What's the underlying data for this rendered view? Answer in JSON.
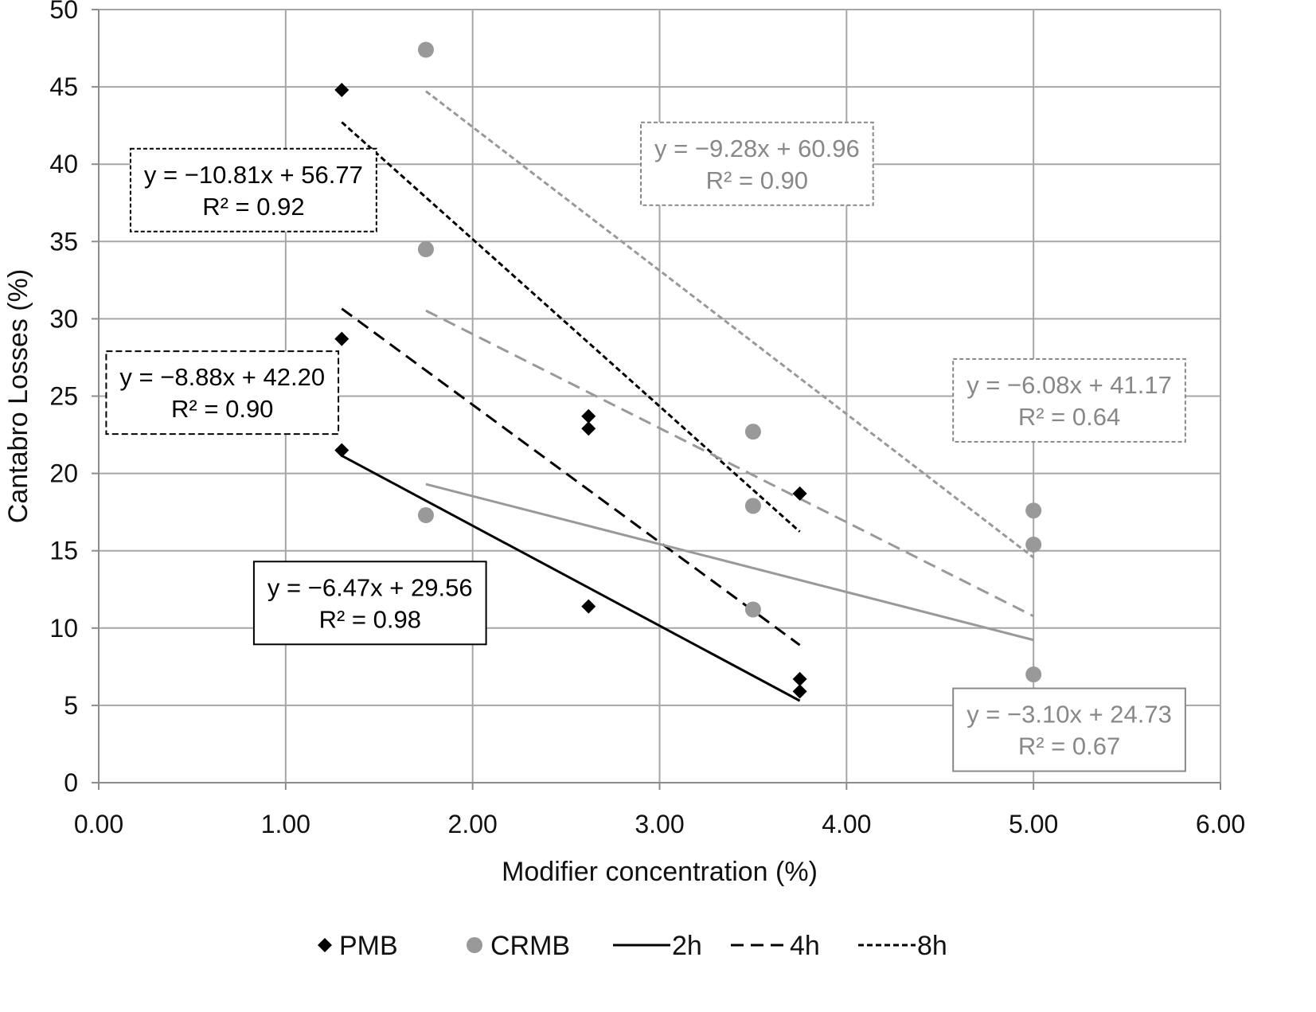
{
  "chart_data": {
    "type": "scatter",
    "xlabel": "Modifier concentration (%)",
    "ylabel": "Cantabro Losses (%)",
    "xlim": [
      0,
      6
    ],
    "ylim": [
      0,
      50
    ],
    "x_ticks": [
      "0.00",
      "1.00",
      "2.00",
      "3.00",
      "4.00",
      "5.00",
      "6.00"
    ],
    "y_ticks": [
      "0",
      "5",
      "10",
      "15",
      "20",
      "25",
      "30",
      "35",
      "40",
      "45",
      "50"
    ],
    "grid": true,
    "legend_position": "bottom",
    "series": [
      {
        "name": "PMB",
        "marker": "diamond",
        "color": "#000000",
        "points": [
          [
            1.3,
            44.8
          ],
          [
            1.3,
            28.7
          ],
          [
            1.3,
            21.5
          ],
          [
            2.62,
            23.7
          ],
          [
            2.62,
            22.9
          ],
          [
            2.62,
            11.4
          ],
          [
            3.75,
            18.7
          ],
          [
            3.75,
            6.7
          ],
          [
            3.75,
            5.9
          ]
        ]
      },
      {
        "name": "CRMB",
        "marker": "circle",
        "color": "#999999",
        "points": [
          [
            1.75,
            47.4
          ],
          [
            1.75,
            34.5
          ],
          [
            1.75,
            17.3
          ],
          [
            3.5,
            22.7
          ],
          [
            3.5,
            17.9
          ],
          [
            3.5,
            11.2
          ],
          [
            5.0,
            17.6
          ],
          [
            5.0,
            15.4
          ],
          [
            5.0,
            7.0
          ]
        ]
      }
    ],
    "trendlines": [
      {
        "group": "PMB",
        "duration": "2h",
        "x": [
          1.3,
          3.75
        ],
        "slope": -6.47,
        "intercept": 29.56,
        "color": "#000000",
        "style": "solid"
      },
      {
        "group": "PMB",
        "duration": "4h",
        "x": [
          1.3,
          3.75
        ],
        "slope": -8.88,
        "intercept": 42.2,
        "color": "#000000",
        "style": "dashed"
      },
      {
        "group": "PMB",
        "duration": "8h",
        "x": [
          1.3,
          3.75
        ],
        "slope": -10.81,
        "intercept": 56.77,
        "color": "#000000",
        "style": "dotted"
      },
      {
        "group": "CRMB",
        "duration": "2h",
        "x": [
          1.75,
          5.0
        ],
        "slope": -3.1,
        "intercept": 24.73,
        "color": "#999999",
        "style": "solid"
      },
      {
        "group": "CRMB",
        "duration": "4h",
        "x": [
          1.75,
          5.0
        ],
        "slope": -6.08,
        "intercept": 41.17,
        "color": "#999999",
        "style": "dashed"
      },
      {
        "group": "CRMB",
        "duration": "8h",
        "x": [
          1.75,
          5.0
        ],
        "slope": -9.28,
        "intercept": 60.96,
        "color": "#999999",
        "style": "dotted"
      }
    ],
    "annotations": [
      {
        "equation": "y = −10.81x + 56.77",
        "r2": "R² = 0.92",
        "color": "#000000",
        "border": "dotted",
        "anchor": [
          0.17,
          41.0
        ]
      },
      {
        "equation": "y = −8.88x + 42.20",
        "r2": "R² = 0.90",
        "color": "#000000",
        "border": "dashed",
        "anchor": [
          0.04,
          27.9
        ]
      },
      {
        "equation": "y = −6.47x + 29.56",
        "r2": "R² = 0.98",
        "color": "#000000",
        "border": "solid",
        "anchor": [
          0.83,
          14.3
        ]
      },
      {
        "equation": "y = −9.28x + 60.96",
        "r2": "R² = 0.90",
        "color": "#888888",
        "border": "dotted",
        "anchor": [
          2.9,
          42.7
        ]
      },
      {
        "equation": "y = −6.08x + 41.17",
        "r2": "R² = 0.64",
        "color": "#888888",
        "border": "dotted",
        "anchor": [
          4.57,
          27.4
        ]
      },
      {
        "equation": "y = −3.10x + 24.73",
        "r2": "R² = 0.67",
        "color": "#888888",
        "border": "solid",
        "anchor": [
          4.57,
          6.1
        ]
      }
    ],
    "legend": [
      {
        "label": "PMB",
        "kind": "diamond",
        "color": "#000000"
      },
      {
        "label": "CRMB",
        "kind": "circle",
        "color": "#999999"
      },
      {
        "label": "2h",
        "kind": "solid-line",
        "color": "#000000"
      },
      {
        "label": "4h",
        "kind": "dashed-line",
        "color": "#000000"
      },
      {
        "label": "8h",
        "kind": "dotted-line",
        "color": "#000000"
      }
    ]
  }
}
